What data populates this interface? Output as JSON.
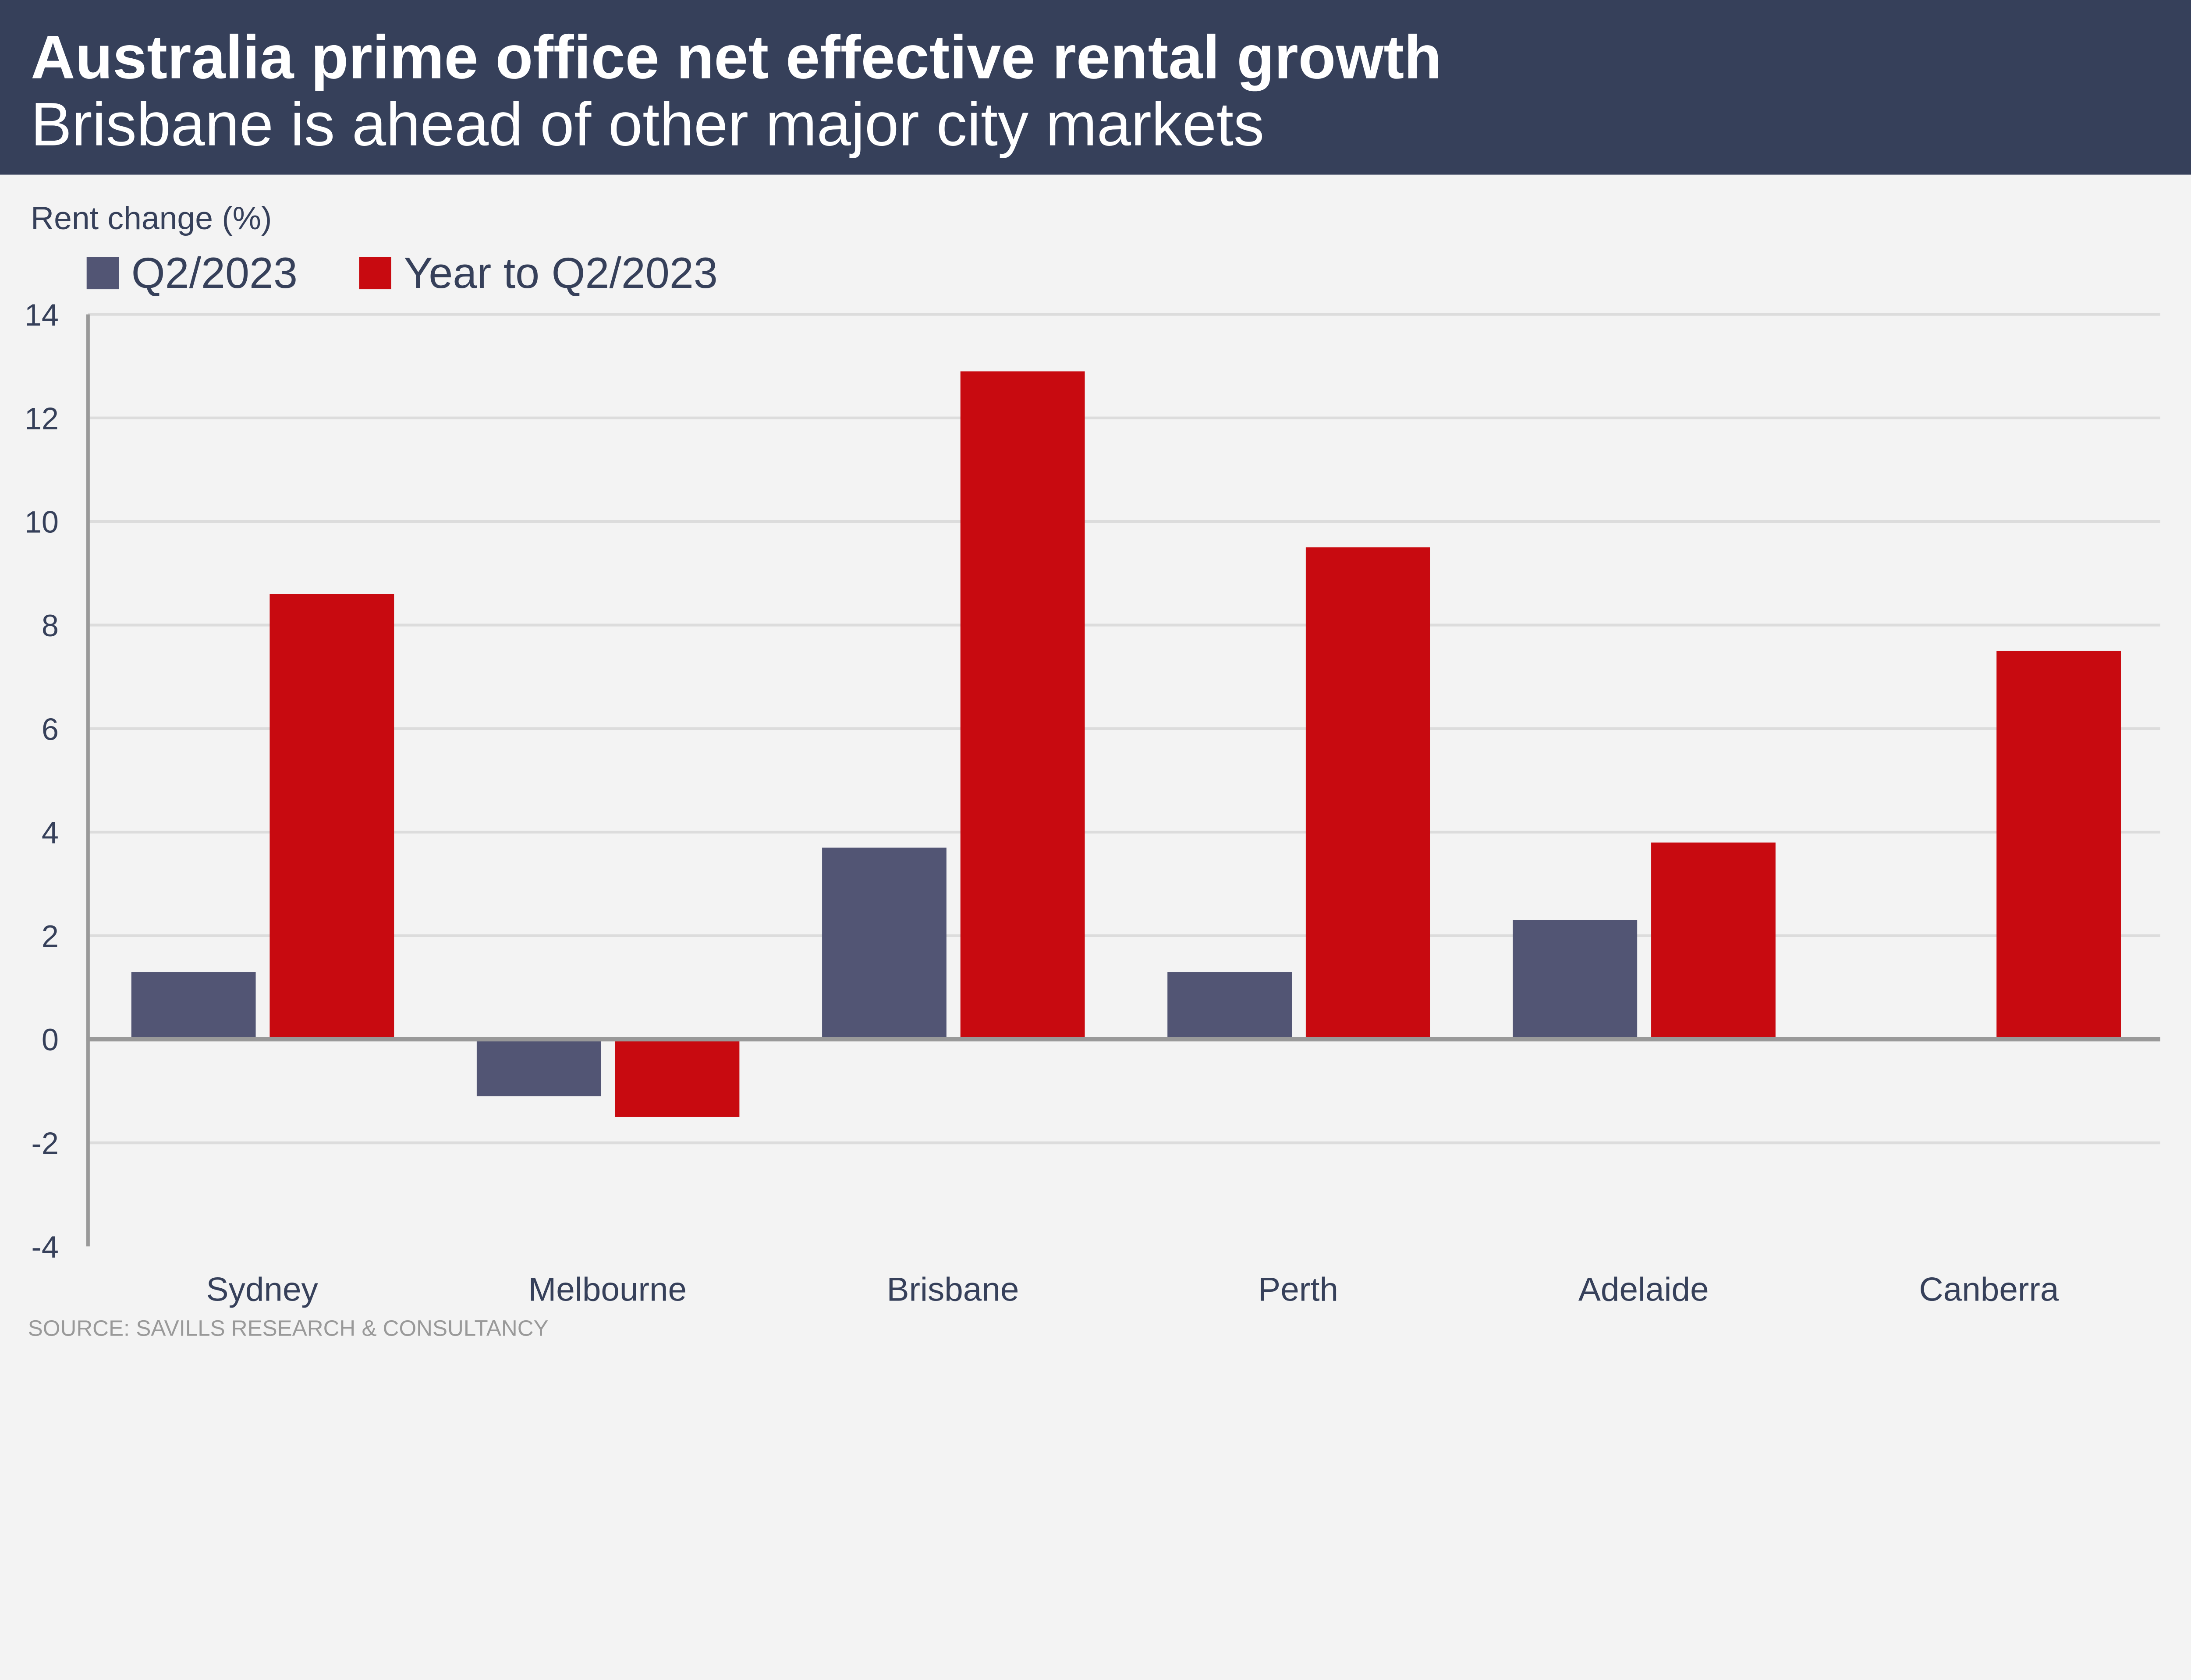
{
  "header": {
    "title": "Australia prime office net effective rental growth",
    "subtitle": "Brisbane is ahead of other major city markets",
    "background": "#36405a"
  },
  "source": "SOURCE: SAVILLS RESEARCH & CONSULTANCY",
  "chart_data": {
    "type": "bar",
    "title": "Australia prime office net effective rental growth",
    "subtitle": "Brisbane is ahead of other major city markets",
    "xlabel": "",
    "ylabel": "Rent change (%)",
    "ylim": [
      -4,
      14
    ],
    "yticks": [
      "14",
      "12",
      "10",
      "8",
      "6",
      "4",
      "2",
      "0",
      "-2",
      "-4"
    ],
    "grid": true,
    "legend_position": "top-left",
    "categories": [
      "Sydney",
      "Melbourne",
      "Brisbane",
      "Perth",
      "Adelaide",
      "Canberra"
    ],
    "series": [
      {
        "name": "Q2/2023",
        "color": "#525574",
        "values": [
          1.3,
          -1.1,
          3.7,
          1.3,
          2.3,
          0
        ]
      },
      {
        "name": "Year to Q2/2023",
        "color": "#c80a10",
        "values": [
          8.6,
          -1.5,
          12.9,
          9.5,
          3.8,
          7.5
        ]
      }
    ]
  }
}
